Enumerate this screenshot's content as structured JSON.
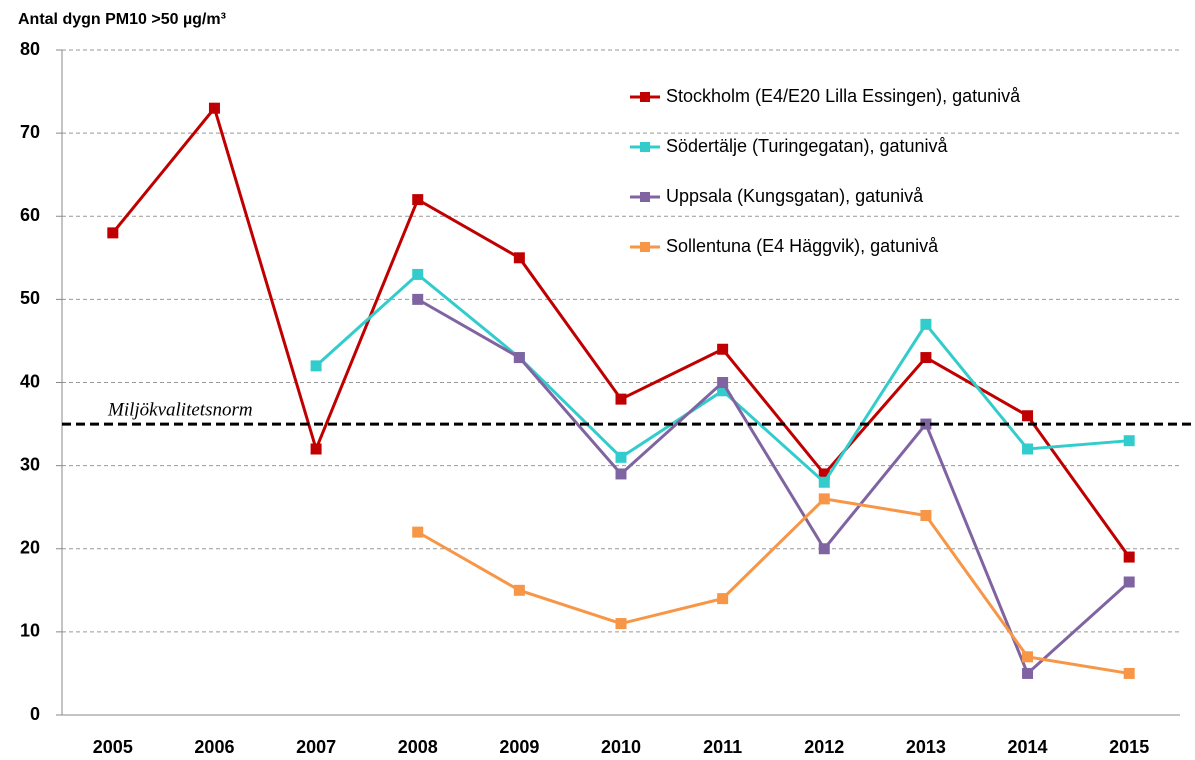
{
  "chart_data": {
    "type": "line",
    "title": "Antal dygn PM10 >50  µg/m³",
    "categories": [
      "2005",
      "2006",
      "2007",
      "2008",
      "2009",
      "2010",
      "2011",
      "2012",
      "2013",
      "2014",
      "2015"
    ],
    "series": [
      {
        "name": "Stockholm (E4/E20 Lilla Essingen), gatunivå",
        "color": "#c00000",
        "values": [
          58,
          73,
          32,
          62,
          55,
          38,
          44,
          29,
          43,
          36,
          19
        ]
      },
      {
        "name": "Södertälje (Turingegatan), gatunivå",
        "color": "#33cccc",
        "values": [
          null,
          null,
          42,
          53,
          43,
          31,
          39,
          28,
          47,
          32,
          33
        ]
      },
      {
        "name": "Uppsala (Kungsgatan), gatunivå",
        "color": "#8064a2",
        "values": [
          null,
          null,
          null,
          50,
          43,
          29,
          40,
          20,
          35,
          5,
          16
        ]
      },
      {
        "name": "Sollentuna (E4 Häggvik), gatunivå",
        "color": "#f79646",
        "values": [
          null,
          null,
          null,
          22,
          15,
          11,
          14,
          26,
          24,
          7,
          5
        ]
      }
    ],
    "reference_line": {
      "value": 35,
      "label": "Miljökvalitetsnorm"
    },
    "ylim": [
      0,
      80
    ],
    "yticks": [
      0,
      10,
      20,
      30,
      40,
      50,
      60,
      70,
      80
    ],
    "grid": true,
    "legend": "upper right"
  }
}
